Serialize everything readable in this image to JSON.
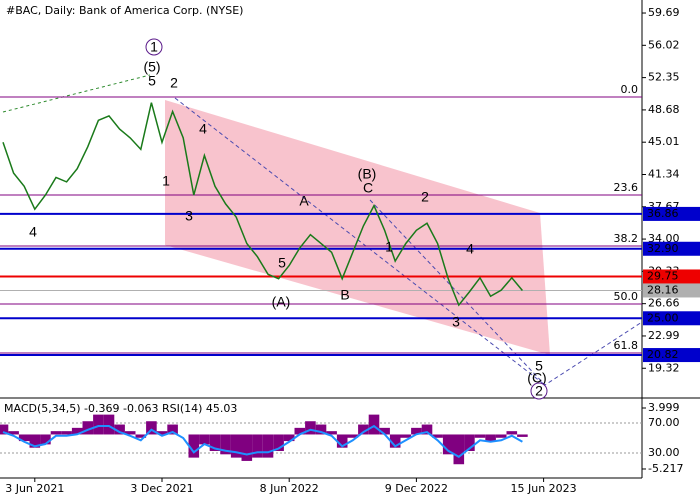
{
  "chart_data": {
    "type": "line",
    "title": "#BAC, Daily:  Bank of America Corp. (NYSE)",
    "categories": [
      null,
      null,
      null,
      "3 Jun 2021",
      null,
      null,
      null,
      null,
      null,
      null,
      null,
      null,
      null,
      null,
      null,
      "3 Dec 2021",
      null,
      null,
      null,
      null,
      null,
      null,
      null,
      null,
      null,
      null,
      null,
      "8 Jun 2022",
      null,
      null,
      null,
      null,
      null,
      null,
      null,
      null,
      null,
      null,
      null,
      "9 Dec 2022",
      null,
      null,
      null,
      null,
      null,
      null,
      null,
      null,
      null,
      null,
      null,
      "15 Jun 2023"
    ],
    "series": [
      {
        "name": "BAC",
        "color": "#1a7a1a",
        "values": [
          45,
          41.5,
          40,
          37.4,
          39,
          41,
          40.5,
          42,
          44.5,
          47.5,
          48,
          46.5,
          45.5,
          44.2,
          49.5,
          45,
          48.5,
          45.5,
          39,
          43.5,
          40,
          38,
          36.5,
          33.5,
          32,
          30,
          29.5,
          31,
          33,
          34.5,
          33.5,
          32.5,
          29.5,
          32.5,
          35.5,
          37.8,
          35,
          31.5,
          33.5,
          35,
          35.8,
          33.5,
          29.5,
          26.5,
          28,
          29.6,
          27.5,
          28.2,
          29.6,
          28.16,
          null,
          null
        ]
      }
    ],
    "ylim": [
      15.94,
      61.17
    ],
    "yticks": [
      59.69,
      56.02,
      52.35,
      48.68,
      45.01,
      41.34,
      37.67,
      {
        "value": 34,
        "label": "34.00"
      },
      30.33,
      26.66,
      22.99,
      19.32
    ],
    "levels": [
      {
        "value": 36.86,
        "color": "#0000cc"
      },
      {
        "value": 32.9,
        "label": "32.90",
        "color": "#0000cc"
      },
      {
        "value": 29.75,
        "color": "#ee0000"
      },
      {
        "value": 28.16,
        "color": "#b0b0b0"
      },
      {
        "value": 25,
        "label": "25.00",
        "color": "#0000cc"
      },
      {
        "value": 20.82,
        "color": "#0000cc"
      }
    ],
    "fib": {
      "color": "#800080",
      "levels": [
        {
          "name": "0.0",
          "value": 50.14
        },
        {
          "name": "23.6",
          "value": 39.01
        },
        {
          "name": "38.2",
          "value": 33.21
        },
        {
          "name": "50.0",
          "value": 26.62
        },
        {
          "name": "61.8",
          "value": 21.05
        }
      ]
    },
    "annotations": [
      "1",
      "(5)",
      "5",
      "2",
      "4",
      "1",
      "3",
      "4",
      "5",
      "(A)",
      "A",
      "B",
      "(B)",
      "C",
      "1",
      "2",
      "4",
      "3",
      "5",
      "(C)",
      "2"
    ],
    "indicator": {
      "title": "MACD(5,34,5) -0.369 -0.063 RSI(14) 45.03",
      "macd": {
        "color": "#800080",
        "ylim": [
          -6.58,
          5.21
        ],
        "yticks": [
          3.999,
          -5.217
        ],
        "values": [
          1.5,
          0.5,
          -1,
          -2,
          -1.5,
          0.5,
          0.5,
          1,
          2,
          3,
          3,
          1.5,
          0.5,
          -0.5,
          2,
          0.5,
          1.5,
          0,
          -3.5,
          -1.5,
          -2.5,
          -3,
          -3.5,
          -4,
          -3.5,
          -3.5,
          -2.5,
          -1,
          1,
          2,
          1.5,
          0.5,
          -2,
          -0.5,
          1.5,
          3,
          1,
          -2,
          -0.5,
          1,
          1.5,
          -0.5,
          -3,
          -4.5,
          -2.5,
          -0.5,
          -1,
          -0.5,
          0.5,
          -0.369
        ]
      },
      "rsi": {
        "color": "#1e90ff",
        "ylim": [
          -3.3,
          100.7
        ],
        "yticks": [
          {
            "value": 70,
            "label": "70.00"
          },
          {
            "value": 30,
            "label": "30.00"
          }
        ],
        "values": [
          58,
          53,
          45,
          39,
          42,
          53,
          53,
          55,
          61,
          66,
          66,
          58,
          53,
          47,
          61,
          53,
          58,
          50,
          31,
          42,
          36,
          33,
          31,
          28,
          31,
          31,
          36,
          45,
          55,
          61,
          58,
          53,
          39,
          47,
          58,
          66,
          55,
          39,
          47,
          55,
          58,
          47,
          33,
          25,
          36,
          47,
          45,
          47,
          53,
          45.03
        ]
      }
    }
  }
}
